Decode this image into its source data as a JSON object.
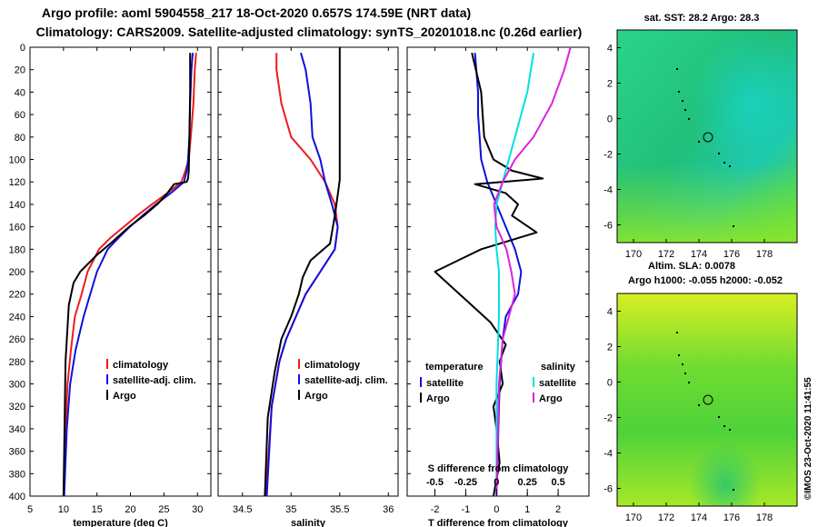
{
  "header": {
    "line1": "Argo profile: aoml 5904558_217 18-Oct-2020 0.657S 174.59E (NRT data)",
    "line2": "Climatology: CARS2009. Satellite-adjusted climatology: synTS_20201018.nc (0.26d earlier)"
  },
  "credit": "©IMOS 23-Oct-2020 11:41:55",
  "colors": {
    "climatology": "#ee1c1c",
    "satellite": "#1010dd",
    "argo": "#000000",
    "sal_sat": "#00e0e0",
    "sal_argo": "#dd22dd"
  },
  "chart_data": [
    {
      "type": "line",
      "id": "temperature",
      "xlabel": "temperature (deg C)",
      "ylabel": "",
      "xlim": [
        5,
        32
      ],
      "ylim": [
        400,
        0
      ],
      "x_ticks": [
        5,
        10,
        15,
        20,
        25,
        30
      ],
      "y_ticks": [
        0,
        20,
        40,
        60,
        80,
        100,
        120,
        140,
        160,
        180,
        200,
        220,
        240,
        260,
        280,
        300,
        320,
        340,
        360,
        380,
        400
      ],
      "legend": [
        "climatology",
        "satellite-adj. clim.",
        "Argo"
      ],
      "series": [
        {
          "name": "climatology",
          "color": "#ee1c1c",
          "x": [
            29.8,
            29.6,
            29.4,
            29.0,
            28.7,
            28.2,
            27.6,
            25.5,
            23.2,
            21.0,
            19.0,
            17.0,
            15.3,
            13.6,
            12.7,
            11.7,
            11.1,
            10.6,
            10.3,
            10.0
          ],
          "y": [
            5,
            20,
            50,
            80,
            100,
            110,
            120,
            130,
            140,
            150,
            160,
            170,
            180,
            200,
            220,
            240,
            270,
            300,
            340,
            400
          ]
        },
        {
          "name": "satellite-adj. clim.",
          "color": "#1010dd",
          "x": [
            29.3,
            29.1,
            28.9,
            28.8,
            28.6,
            28.4,
            28.0,
            26.0,
            23.8,
            21.8,
            19.9,
            18.2,
            16.6,
            15.0,
            14.0,
            13.0,
            11.8,
            11.0,
            10.5,
            10.1
          ],
          "y": [
            5,
            20,
            50,
            80,
            100,
            110,
            120,
            130,
            140,
            150,
            160,
            170,
            180,
            200,
            220,
            240,
            270,
            300,
            340,
            400
          ]
        },
        {
          "name": "Argo",
          "color": "#000000",
          "x": [
            28.9,
            28.9,
            28.8,
            28.7,
            28.6,
            28.4,
            26.5,
            25.5,
            24.0,
            22.0,
            19.8,
            17.0,
            15.0,
            12.5,
            11.5,
            10.8,
            10.3,
            10.0
          ],
          "y": [
            5,
            40,
            80,
            110,
            117,
            120,
            122,
            130,
            140,
            150,
            160,
            175,
            185,
            200,
            210,
            230,
            280,
            400
          ]
        }
      ]
    },
    {
      "type": "line",
      "id": "salinity",
      "xlabel": "salinity",
      "xlim": [
        34.25,
        36.1
      ],
      "ylim": [
        400,
        0
      ],
      "x_ticks": [
        34.5,
        35,
        35.5,
        36
      ],
      "legend": [
        "climatology",
        "satellite-adj. clim.",
        "Argo"
      ],
      "series": [
        {
          "name": "climatology",
          "color": "#ee1c1c",
          "x": [
            34.85,
            34.85,
            34.9,
            35.0,
            35.2,
            35.35,
            35.45,
            35.48,
            35.45,
            35.3,
            35.15,
            35.05,
            34.95,
            34.88,
            34.8,
            34.74
          ],
          "y": [
            5,
            20,
            50,
            80,
            100,
            120,
            140,
            160,
            180,
            200,
            220,
            240,
            260,
            280,
            320,
            400
          ]
        },
        {
          "name": "satellite-adj. clim.",
          "color": "#1010dd",
          "x": [
            35.1,
            35.15,
            35.2,
            35.22,
            35.3,
            35.35,
            35.42,
            35.48,
            35.45,
            35.3,
            35.15,
            35.05,
            34.95,
            34.88,
            34.8,
            34.75
          ],
          "y": [
            5,
            20,
            50,
            80,
            100,
            120,
            140,
            160,
            180,
            200,
            220,
            240,
            260,
            280,
            320,
            400
          ]
        },
        {
          "name": "Argo",
          "color": "#000000",
          "x": [
            35.5,
            35.5,
            35.5,
            35.5,
            35.49,
            35.45,
            35.4,
            35.2,
            35.12,
            35.08,
            35.0,
            34.9,
            34.83,
            34.76,
            34.73
          ],
          "y": [
            0,
            50,
            100,
            118,
            125,
            150,
            175,
            190,
            205,
            220,
            240,
            260,
            290,
            330,
            400
          ]
        }
      ]
    },
    {
      "type": "line",
      "id": "difference",
      "xlabel": "T difference from climatology",
      "xlabel_top": "S difference from climatology",
      "xlim": [
        -2.9,
        3.0
      ],
      "ylim": [
        400,
        0
      ],
      "x_ticks": [
        -2,
        -1,
        0,
        1,
        2
      ],
      "x_ticks_top_labels": [
        "-0.5",
        "-0.25",
        "0",
        "0.25",
        "0.5"
      ],
      "x_ticks_top_values": [
        -0.5,
        -0.25,
        0,
        0.25,
        0.5
      ],
      "legend_titles": [
        "temperature",
        "salinity"
      ],
      "legend": [
        "satellite",
        "Argo",
        "satellite",
        "Argo"
      ],
      "series": [
        {
          "name": "T satellite",
          "color": "#1010dd",
          "x": [
            -0.7,
            -0.6,
            -0.6,
            -0.55,
            -0.5,
            -0.3,
            0.0,
            0.3,
            0.6,
            0.8,
            0.7,
            0.3,
            0.2,
            0.1,
            0.05,
            0.0
          ],
          "y": [
            5,
            40,
            60,
            80,
            100,
            120,
            140,
            160,
            180,
            200,
            220,
            240,
            260,
            300,
            350,
            400
          ]
        },
        {
          "name": "T Argo",
          "color": "#000000",
          "x": [
            -0.8,
            -0.5,
            -0.4,
            -0.1,
            0.5,
            1.5,
            -0.7,
            0.3,
            0.7,
            0.5,
            1.3,
            -0.5,
            -2.0,
            -1.2,
            -0.2,
            0.3,
            0.1,
            0.2,
            -0.1,
            0.0,
            0.1,
            -0.1
          ],
          "y": [
            5,
            40,
            80,
            100,
            110,
            117,
            122,
            130,
            140,
            150,
            165,
            180,
            200,
            220,
            245,
            265,
            280,
            300,
            320,
            340,
            370,
            400
          ]
        },
        {
          "name": "S satellite",
          "color": "#00e0e0",
          "x": [
            0.3,
            0.25,
            0.15,
            0.05,
            0.0,
            -0.01,
            0.0,
            0.02,
            0.02,
            0.0,
            0.0,
            0.0
          ],
          "y": [
            5,
            40,
            80,
            120,
            140,
            160,
            180,
            200,
            240,
            300,
            350,
            400
          ]
        },
        {
          "name": "S Argo",
          "color": "#dd22dd",
          "x": [
            0.6,
            0.55,
            0.45,
            0.3,
            0.15,
            0.05,
            -0.02,
            0.0,
            0.08,
            0.12,
            0.15,
            0.1,
            0.05,
            0.02,
            0.0
          ],
          "y": [
            0,
            20,
            50,
            80,
            100,
            120,
            140,
            160,
            180,
            200,
            220,
            240,
            260,
            300,
            400
          ]
        }
      ]
    },
    {
      "type": "heatmap",
      "id": "sst-map",
      "title": "sat. SST: 28.2 Argo: 28.3",
      "xlim": [
        169,
        180
      ],
      "ylim": [
        -7,
        5
      ],
      "x_ticks": [
        170,
        172,
        174,
        176,
        178
      ],
      "y_ticks": [
        4,
        2,
        0,
        -2,
        -4,
        -6
      ],
      "argo_position": {
        "lon": 174.59,
        "lat": -0.657
      }
    },
    {
      "type": "heatmap",
      "id": "sla-map",
      "title": "Altim. SLA: 0.0078",
      "subtitle": "Argo h1000: -0.055 h2000: -0.052",
      "xlim": [
        169,
        180
      ],
      "ylim": [
        -7,
        5
      ],
      "x_ticks": [
        170,
        172,
        174,
        176,
        178
      ],
      "y_ticks": [
        4,
        2,
        0,
        -2,
        -4,
        -6
      ],
      "argo_position": {
        "lon": 174.59,
        "lat": -0.657
      }
    }
  ]
}
